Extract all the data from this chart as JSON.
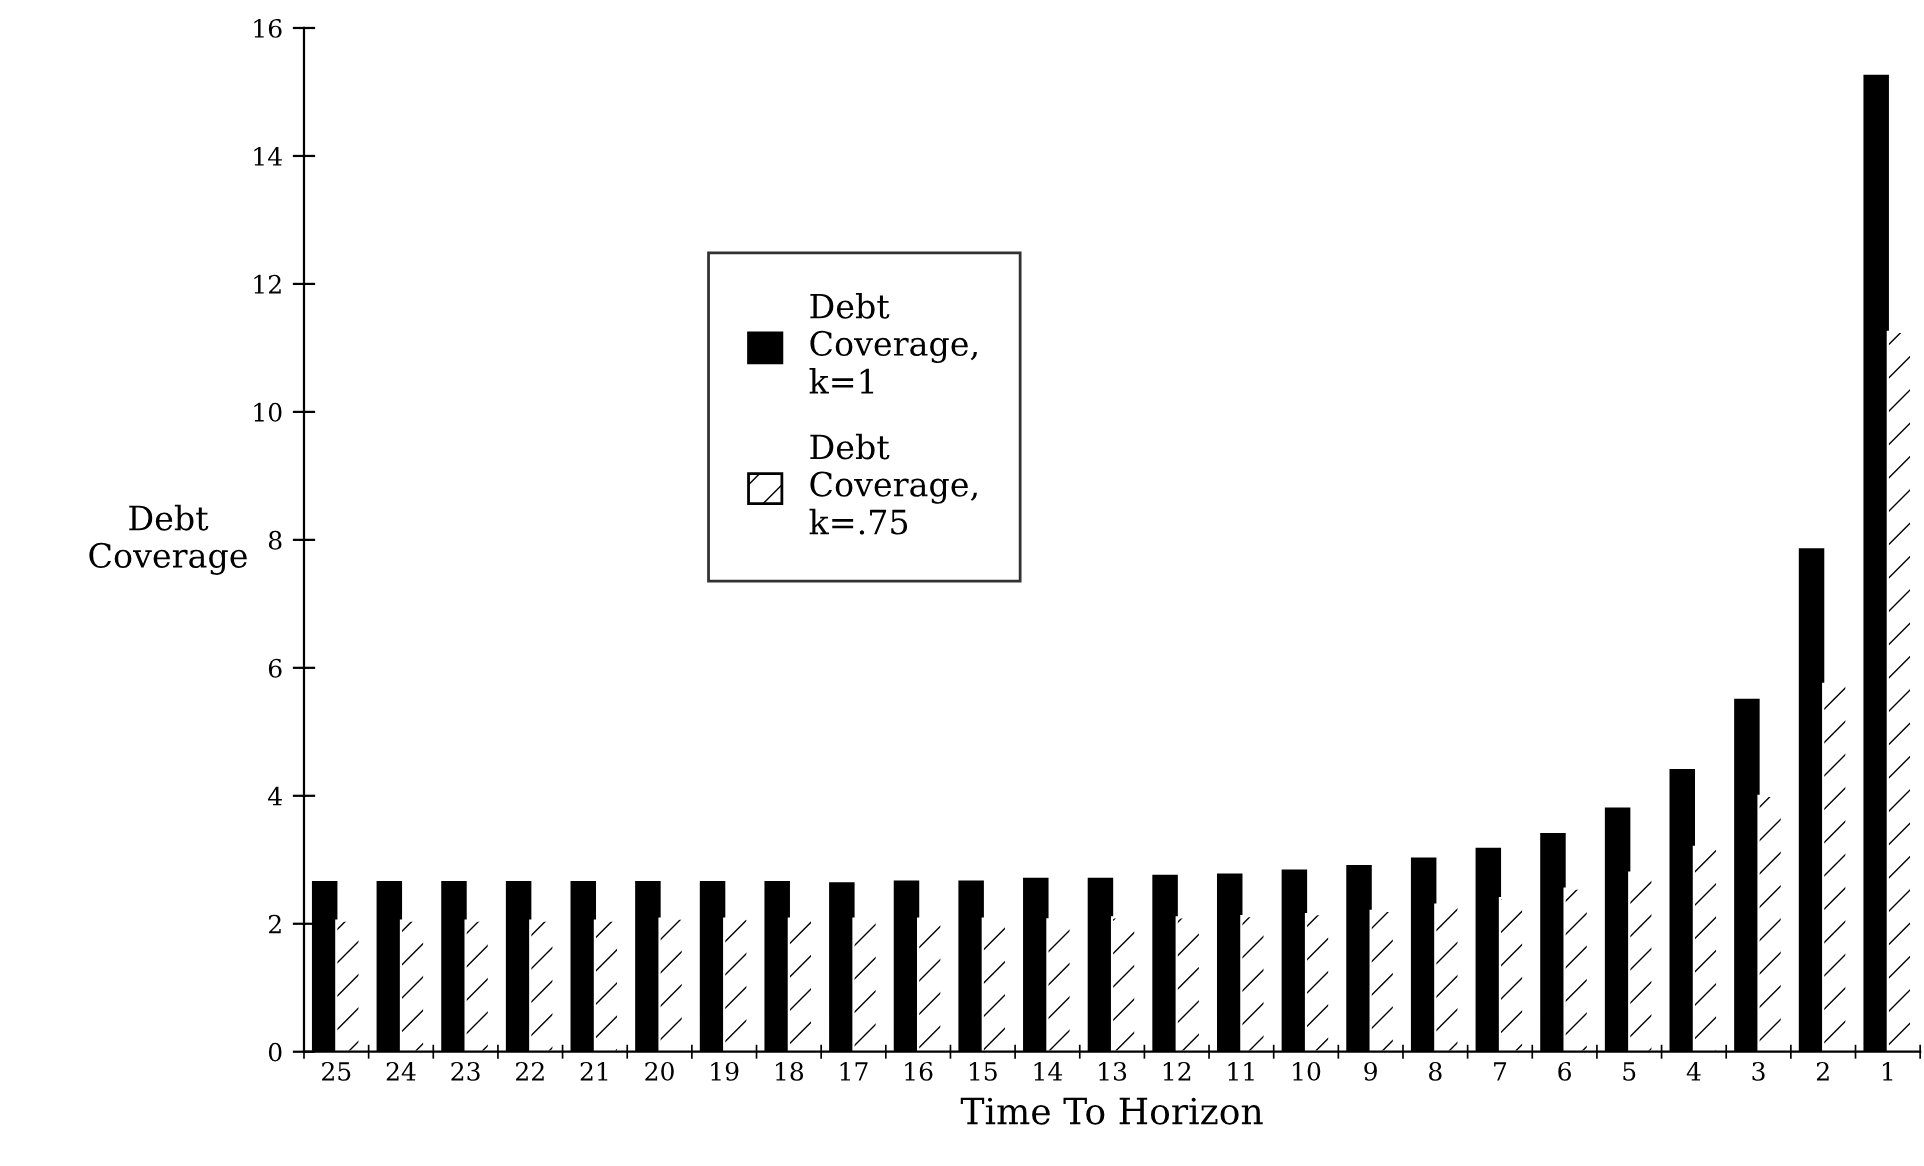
{
  "chart_data": {
    "type": "bar",
    "xlabel": "Time To Horizon",
    "ylabel": "Debt\nCoverage",
    "categories": [
      "25",
      "24",
      "23",
      "22",
      "21",
      "20",
      "19",
      "18",
      "17",
      "16",
      "15",
      "14",
      "13",
      "12",
      "11",
      "10",
      "9",
      "8",
      "7",
      "6",
      "5",
      "4",
      "3",
      "2",
      "1"
    ],
    "series": [
      {
        "name": "Debt\nCoverage,\nk=1",
        "color": "#000000",
        "values": [
          2.65,
          2.65,
          2.65,
          2.65,
          2.65,
          2.65,
          2.65,
          2.65,
          2.63,
          2.66,
          2.66,
          2.7,
          2.7,
          2.75,
          2.77,
          2.83,
          2.9,
          3.02,
          3.17,
          3.4,
          3.8,
          4.4,
          5.5,
          7.85,
          15.25
        ]
      },
      {
        "name": "Debt\nCoverage,\nk=.75",
        "color": "#ffffff",
        "values": [
          2.05,
          2.05,
          2.05,
          2.05,
          2.05,
          2.08,
          2.08,
          2.08,
          2.08,
          2.08,
          2.08,
          2.07,
          2.1,
          2.1,
          2.12,
          2.15,
          2.2,
          2.3,
          2.4,
          2.55,
          2.8,
          3.2,
          4.0,
          5.75,
          11.25
        ]
      }
    ],
    "ylim": [
      0,
      16
    ],
    "yticks": [
      0,
      2,
      4,
      6,
      8,
      10,
      12,
      14,
      16
    ],
    "grid": false,
    "legend": "center left"
  }
}
